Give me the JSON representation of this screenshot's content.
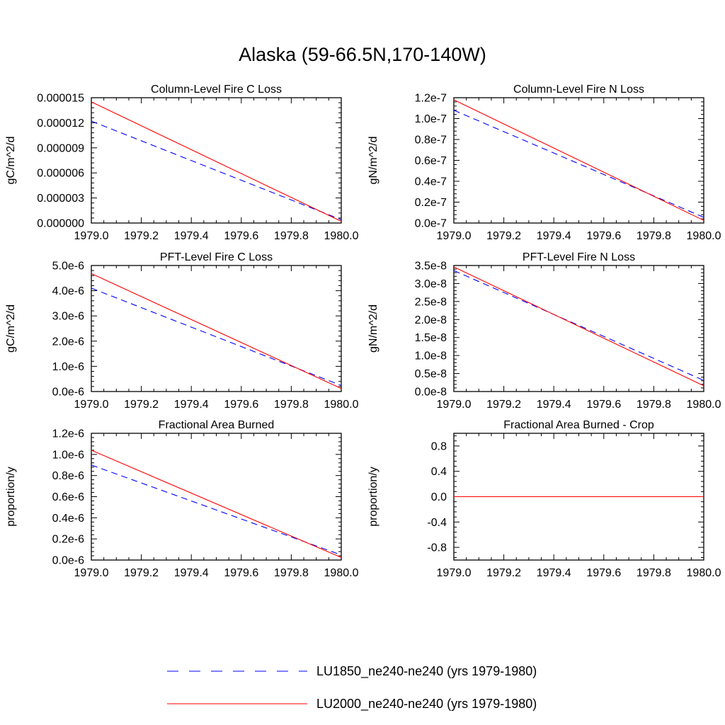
{
  "title": "Alaska (59-66.5N,170-140W)",
  "colors": {
    "series_a": "#0000ff",
    "series_b": "#ff0000",
    "axis": "#000000"
  },
  "legend": [
    {
      "label": "LU1850_ne240-ne240 (yrs 1979-1980)",
      "color": "#0000ff",
      "dash": "dashed"
    },
    {
      "label": "LU2000_ne240-ne240 (yrs 1979-1980)",
      "color": "#ff0000",
      "dash": "solid"
    }
  ],
  "chart_data": [
    {
      "type": "line",
      "title": "Column-Level Fire C Loss",
      "ylabel": "gC/m^2/d",
      "xlim": [
        1979.0,
        1980.0
      ],
      "ylim": [
        0.0,
        1.5e-05
      ],
      "xticks": [
        "1979.0",
        "1979.2",
        "1979.4",
        "1979.6",
        "1979.8",
        "1980.0"
      ],
      "yticks": [
        {
          "value": 0.0,
          "label": "0.000000"
        },
        {
          "value": 3e-06,
          "label": "0.000003"
        },
        {
          "value": 6e-06,
          "label": "0.000006"
        },
        {
          "value": 9e-06,
          "label": "0.000009"
        },
        {
          "value": 1.2e-05,
          "label": "0.000012"
        },
        {
          "value": 1.5e-05,
          "label": "0.000015"
        }
      ],
      "series": [
        {
          "x": [
            1979.0,
            1980.0
          ],
          "y": [
            1.22e-05,
            4e-07
          ]
        },
        {
          "x": [
            1979.0,
            1980.0
          ],
          "y": [
            1.45e-05,
            2e-07
          ]
        }
      ]
    },
    {
      "type": "line",
      "title": "Column-Level Fire N Loss",
      "ylabel": "gN/m^2/d",
      "xlim": [
        1979.0,
        1980.0
      ],
      "ylim": [
        0.0,
        1.2e-07
      ],
      "xticks": [
        "1979.0",
        "1979.2",
        "1979.4",
        "1979.6",
        "1979.8",
        "1980.0"
      ],
      "yticks": [
        {
          "value": 0.0,
          "label": "0.0e-7"
        },
        {
          "value": 2e-08,
          "label": "0.2e-7"
        },
        {
          "value": 4e-08,
          "label": "0.4e-7"
        },
        {
          "value": 6e-08,
          "label": "0.6e-7"
        },
        {
          "value": 8e-08,
          "label": "0.8e-7"
        },
        {
          "value": 1e-07,
          "label": "1.0e-7"
        },
        {
          "value": 1.2e-07,
          "label": "1.2e-7"
        }
      ],
      "series": [
        {
          "x": [
            1979.0,
            1980.0
          ],
          "y": [
            1.08e-07,
            5.5e-09
          ]
        },
        {
          "x": [
            1979.0,
            1980.0
          ],
          "y": [
            1.18e-07,
            2.5e-09
          ]
        }
      ]
    },
    {
      "type": "line",
      "title": "PFT-Level Fire C Loss",
      "ylabel": "gC/m^2/d",
      "xlim": [
        1979.0,
        1980.0
      ],
      "ylim": [
        0.0,
        5e-06
      ],
      "xticks": [
        "1979.0",
        "1979.2",
        "1979.4",
        "1979.6",
        "1979.8",
        "1980.0"
      ],
      "yticks": [
        {
          "value": 0.0,
          "label": "0.0e-6"
        },
        {
          "value": 1e-06,
          "label": "1.0e-6"
        },
        {
          "value": 2e-06,
          "label": "2.0e-6"
        },
        {
          "value": 3e-06,
          "label": "3.0e-6"
        },
        {
          "value": 4e-06,
          "label": "4.0e-6"
        },
        {
          "value": 5e-06,
          "label": "5.0e-6"
        }
      ],
      "series": [
        {
          "x": [
            1979.0,
            1980.0
          ],
          "y": [
            4.1e-06,
            2.4e-07
          ]
        },
        {
          "x": [
            1979.0,
            1980.0
          ],
          "y": [
            4.68e-06,
            1.2e-07
          ]
        }
      ]
    },
    {
      "type": "line",
      "title": "PFT-Level Fire N Loss",
      "ylabel": "gN/m^2/d",
      "xlim": [
        1979.0,
        1980.0
      ],
      "ylim": [
        0.0,
        3.5e-08
      ],
      "xticks": [
        "1979.0",
        "1979.2",
        "1979.4",
        "1979.6",
        "1979.8",
        "1980.0"
      ],
      "yticks": [
        {
          "value": 0.0,
          "label": "0.0e-8"
        },
        {
          "value": 5e-09,
          "label": "0.5e-8"
        },
        {
          "value": 1e-08,
          "label": "1.0e-8"
        },
        {
          "value": 1.5e-08,
          "label": "1.5e-8"
        },
        {
          "value": 2e-08,
          "label": "2.0e-8"
        },
        {
          "value": 2.5e-08,
          "label": "2.5e-8"
        },
        {
          "value": 3e-08,
          "label": "3.0e-8"
        },
        {
          "value": 3.5e-08,
          "label": "3.5e-8"
        }
      ],
      "series": [
        {
          "x": [
            1979.0,
            1980.0
          ],
          "y": [
            3.36e-08,
            3.1e-09
          ]
        },
        {
          "x": [
            1979.0,
            1980.0
          ],
          "y": [
            3.46e-08,
            1.6e-09
          ]
        }
      ]
    },
    {
      "type": "line",
      "title": "Fractional Area Burned",
      "ylabel": "proportion/y",
      "xlim": [
        1979.0,
        1980.0
      ],
      "ylim": [
        0.0,
        1.2e-06
      ],
      "xticks": [
        "1979.0",
        "1979.2",
        "1979.4",
        "1979.6",
        "1979.8",
        "1980.0"
      ],
      "yticks": [
        {
          "value": 0.0,
          "label": "0.0e-6"
        },
        {
          "value": 2e-07,
          "label": "0.2e-6"
        },
        {
          "value": 4e-07,
          "label": "0.4e-6"
        },
        {
          "value": 6e-07,
          "label": "0.6e-6"
        },
        {
          "value": 8e-07,
          "label": "0.8e-6"
        },
        {
          "value": 1e-06,
          "label": "1.0e-6"
        },
        {
          "value": 1.2e-06,
          "label": "1.2e-6"
        }
      ],
      "series": [
        {
          "x": [
            1979.0,
            1980.0
          ],
          "y": [
            9e-07,
            4.8e-08
          ]
        },
        {
          "x": [
            1979.0,
            1980.0
          ],
          "y": [
            1.04e-06,
            2.4e-08
          ]
        }
      ]
    },
    {
      "type": "line",
      "title": "Fractional Area Burned - Crop",
      "ylabel": "proportion/y",
      "xlim": [
        1979.0,
        1980.0
      ],
      "ylim": [
        -1.0,
        1.0
      ],
      "xticks": [
        "1979.0",
        "1979.2",
        "1979.4",
        "1979.6",
        "1979.8",
        "1980.0"
      ],
      "yticks": [
        {
          "value": -0.8,
          "label": "-0.8"
        },
        {
          "value": -0.4,
          "label": "-0.4"
        },
        {
          "value": 0.0,
          "label": "0.0"
        },
        {
          "value": 0.4,
          "label": "0.4"
        },
        {
          "value": 0.8,
          "label": "0.8"
        }
      ],
      "series": [
        {
          "x": [
            1979.0,
            1980.0
          ],
          "y": [
            0.0,
            0.0
          ]
        },
        {
          "x": [
            1979.0,
            1980.0
          ],
          "y": [
            0.0,
            0.0
          ]
        }
      ]
    }
  ]
}
